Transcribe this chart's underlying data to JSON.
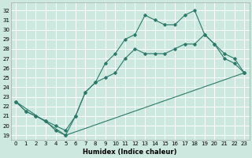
{
  "xlabel": "Humidex (Indice chaleur)",
  "background_color": "#cce8df",
  "grid_color": "#ffffff",
  "line_color": "#2d7a6a",
  "xlim": [
    -0.5,
    23.5
  ],
  "ylim": [
    18.5,
    32.8
  ],
  "yticks": [
    19,
    20,
    21,
    22,
    23,
    24,
    25,
    26,
    27,
    28,
    29,
    30,
    31,
    32
  ],
  "xticks": [
    0,
    1,
    2,
    3,
    4,
    5,
    6,
    7,
    8,
    9,
    10,
    11,
    12,
    13,
    14,
    15,
    16,
    17,
    18,
    19,
    20,
    21,
    22,
    23
  ],
  "line2_x": [
    0,
    1,
    2,
    3,
    4,
    5,
    6,
    7,
    8,
    9,
    10,
    11,
    12,
    13,
    14,
    15,
    16,
    17,
    18,
    19,
    20,
    21,
    22,
    23
  ],
  "line2_y": [
    22.5,
    21.5,
    21.0,
    20.5,
    20.0,
    19.5,
    21.0,
    23.5,
    24.5,
    26.5,
    27.5,
    29.0,
    29.5,
    31.5,
    31.0,
    30.5,
    30.5,
    31.5,
    32.0,
    29.5,
    28.5,
    27.5,
    27.0,
    25.5
  ],
  "line1_x": [
    0,
    1,
    2,
    3,
    4,
    5,
    6,
    7,
    8,
    9,
    10,
    11,
    12,
    13,
    14,
    15,
    16,
    17,
    18,
    19,
    20,
    21,
    22,
    23
  ],
  "line1_y": [
    22.5,
    21.5,
    21.0,
    20.5,
    19.5,
    19.0,
    21.0,
    23.5,
    24.5,
    25.0,
    25.5,
    27.0,
    28.0,
    27.5,
    27.5,
    27.5,
    28.0,
    28.5,
    28.5,
    29.5,
    28.5,
    27.0,
    26.5,
    25.5
  ],
  "line3_x": [
    0,
    5,
    23
  ],
  "line3_y": [
    22.5,
    19.0,
    25.5
  ]
}
